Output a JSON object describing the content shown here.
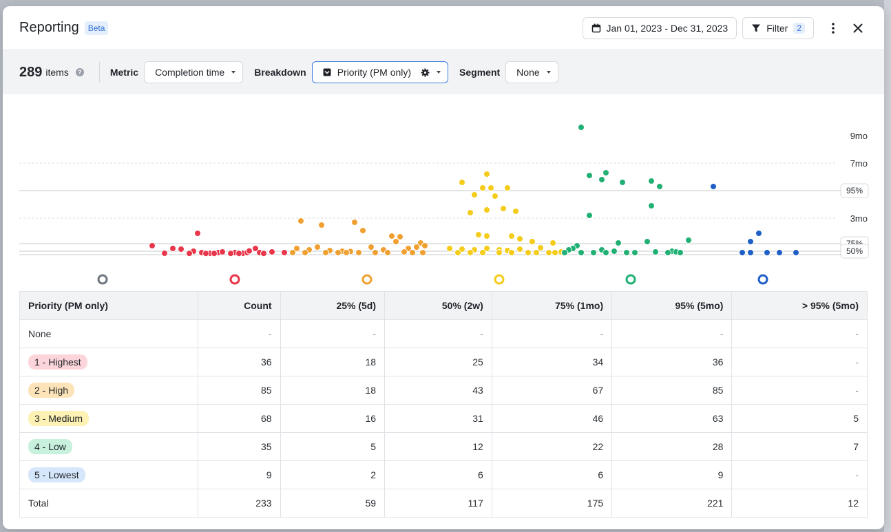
{
  "header": {
    "title": "Reporting",
    "beta": "Beta",
    "date_range": "Jan 01, 2023 - Dec 31, 2023",
    "filter_label": "Filter",
    "filter_count": "2"
  },
  "toolbar": {
    "items_count": "289",
    "items_label": "items",
    "help": "?",
    "metric_label": "Metric",
    "metric_value": "Completion time",
    "breakdown_label": "Breakdown",
    "breakdown_value": "Priority (PM only)",
    "segment_label": "Segment",
    "segment_value": "None"
  },
  "chart_data": {
    "type": "scatter",
    "y_ticks": [
      "9mo",
      "7mo",
      "3mo"
    ],
    "percentile_labels": [
      "95%",
      "75%",
      "50%"
    ],
    "series": [
      {
        "color": "#e8364a",
        "points": [
          [
            -2,
            1.0
          ],
          [
            -1.5,
            0.8
          ],
          [
            -1.3,
            0.75
          ],
          [
            -1,
            0.6
          ],
          [
            -0.8,
            0.5
          ],
          [
            -0.6,
            0.45
          ],
          [
            -0.4,
            0.5
          ],
          [
            0,
            0.5
          ],
          [
            0.2,
            0.45
          ],
          [
            0.3,
            0.5
          ],
          [
            0.5,
            0.8
          ],
          [
            -0.9,
            1.9
          ],
          [
            -0.3,
            0.55
          ],
          [
            0.6,
            0.5
          ],
          [
            0.9,
            0.55
          ],
          [
            1.2,
            0.5
          ],
          [
            1.4,
            0.5
          ],
          [
            0.35,
            0.62
          ],
          [
            -1.7,
            0.45
          ],
          [
            -0.1,
            0.44
          ],
          [
            0.1,
            0.44
          ],
          [
            -1.1,
            0.44
          ],
          [
            -0.7,
            0.44
          ],
          [
            -0.5,
            0.44
          ],
          [
            0.7,
            0.44
          ]
        ]
      },
      {
        "color": "#f0a030",
        "points": [
          [
            -1.6,
            2.8
          ],
          [
            -1.1,
            2.5
          ],
          [
            -0.3,
            2.7
          ],
          [
            -0.1,
            2.1
          ],
          [
            0.6,
            1.7
          ],
          [
            0.8,
            1.65
          ],
          [
            -1.7,
            0.8
          ],
          [
            -1.4,
            0.7
          ],
          [
            -1.2,
            0.9
          ],
          [
            -0.9,
            0.65
          ],
          [
            -0.6,
            0.6
          ],
          [
            -0.4,
            0.58
          ],
          [
            0.1,
            0.9
          ],
          [
            0.4,
            0.7
          ],
          [
            1,
            0.8
          ],
          [
            1.2,
            0.9
          ],
          [
            0.7,
            1.3
          ],
          [
            1.3,
            1.2
          ],
          [
            1.4,
            1.0
          ],
          [
            -1.8,
            0.5
          ],
          [
            -1.5,
            0.5
          ],
          [
            -1,
            0.5
          ],
          [
            -0.7,
            0.5
          ],
          [
            -0.2,
            0.5
          ],
          [
            0.2,
            0.5
          ],
          [
            0.5,
            0.5
          ],
          [
            1.1,
            0.5
          ],
          [
            1.35,
            0.5
          ],
          [
            0.9,
            0.55
          ],
          [
            -0.5,
            0.5
          ]
        ]
      },
      {
        "color": "#f5cc1a",
        "points": [
          [
            -0.9,
            5.6
          ],
          [
            -0.3,
            6.2
          ],
          [
            -0.4,
            5.2
          ],
          [
            -0.2,
            5.2
          ],
          [
            0.2,
            5.2
          ],
          [
            -0.6,
            4.7
          ],
          [
            -0.1,
            4.6
          ],
          [
            0.1,
            3.7
          ],
          [
            -0.3,
            3.6
          ],
          [
            -0.7,
            3.4
          ],
          [
            0.4,
            3.5
          ],
          [
            -0.5,
            1.8
          ],
          [
            -0.3,
            1.7
          ],
          [
            0.3,
            1.7
          ],
          [
            0.5,
            1.5
          ],
          [
            -1.2,
            0.8
          ],
          [
            -0.9,
            0.75
          ],
          [
            -0.6,
            0.7
          ],
          [
            -0.3,
            0.8
          ],
          [
            0,
            0.7
          ],
          [
            0.2,
            0.65
          ],
          [
            0.5,
            0.75
          ],
          [
            0.8,
            1.3
          ],
          [
            1,
            0.85
          ],
          [
            1.3,
            1.2
          ],
          [
            1.5,
            0.55
          ],
          [
            -1,
            0.5
          ],
          [
            -0.7,
            0.5
          ],
          [
            -0.4,
            0.5
          ],
          [
            0,
            0.5
          ],
          [
            0.3,
            0.5
          ],
          [
            0.7,
            0.5
          ],
          [
            0.9,
            0.5
          ],
          [
            1.2,
            0.5
          ],
          [
            1.35,
            0.5
          ]
        ]
      },
      {
        "color": "#20b074",
        "points": [
          [
            -1.2,
            9.6
          ],
          [
            -1,
            6.1
          ],
          [
            -0.6,
            6.3
          ],
          [
            -0.7,
            5.8
          ],
          [
            -0.2,
            5.6
          ],
          [
            0.5,
            5.7
          ],
          [
            0.7,
            5.3
          ],
          [
            0.5,
            3.9
          ],
          [
            -1,
            3.2
          ],
          [
            -0.3,
            1.2
          ],
          [
            0.4,
            1.3
          ],
          [
            1.4,
            1.4
          ],
          [
            -1.3,
            1.0
          ],
          [
            -1.4,
            0.8
          ],
          [
            -1.5,
            0.7
          ],
          [
            -0.7,
            0.7
          ],
          [
            -0.4,
            0.6
          ],
          [
            0.6,
            0.55
          ],
          [
            1,
            0.6
          ],
          [
            1.1,
            0.55
          ],
          [
            -1.6,
            0.5
          ],
          [
            -1.2,
            0.5
          ],
          [
            -0.9,
            0.5
          ],
          [
            -0.6,
            0.5
          ],
          [
            -0.1,
            0.5
          ],
          [
            0.1,
            0.5
          ],
          [
            0.9,
            0.5
          ],
          [
            1.2,
            0.5
          ]
        ]
      },
      {
        "color": "#1e5fc7",
        "points": [
          [
            -1.2,
            5.3
          ],
          [
            -0.1,
            1.9
          ],
          [
            -0.3,
            1.3
          ],
          [
            -0.5,
            0.5
          ],
          [
            -0.3,
            0.5
          ],
          [
            0.1,
            0.5
          ],
          [
            0.4,
            0.5
          ],
          [
            0.8,
            0.5
          ]
        ]
      }
    ]
  },
  "table": {
    "headers": [
      "Priority (PM only)",
      "Count",
      "25% (5d)",
      "50% (2w)",
      "75% (1mo)",
      "95% (5mo)",
      "> 95% (5mo)"
    ],
    "rows": [
      {
        "label": "None",
        "pill": false,
        "bg": "",
        "cells": [
          "-",
          "-",
          "-",
          "-",
          "-",
          "-"
        ]
      },
      {
        "label": "1 - Highest",
        "pill": true,
        "bg": "#fcd5da",
        "cells": [
          "36",
          "18",
          "25",
          "34",
          "36",
          "-"
        ]
      },
      {
        "label": "2 - High",
        "pill": true,
        "bg": "#fde4b8",
        "cells": [
          "85",
          "18",
          "43",
          "67",
          "85",
          "-"
        ]
      },
      {
        "label": "3 - Medium",
        "pill": true,
        "bg": "#fdf1b3",
        "cells": [
          "68",
          "16",
          "31",
          "46",
          "63",
          "5"
        ]
      },
      {
        "label": "4 - Low",
        "pill": true,
        "bg": "#c7f0dd",
        "cells": [
          "35",
          "5",
          "12",
          "22",
          "28",
          "7"
        ]
      },
      {
        "label": "5 - Lowest",
        "pill": true,
        "bg": "#d6e6fb",
        "cells": [
          "9",
          "2",
          "6",
          "6",
          "9",
          "-"
        ]
      },
      {
        "label": "Total",
        "pill": false,
        "bg": "",
        "cells": [
          "233",
          "59",
          "117",
          "175",
          "221",
          "12"
        ]
      }
    ]
  }
}
